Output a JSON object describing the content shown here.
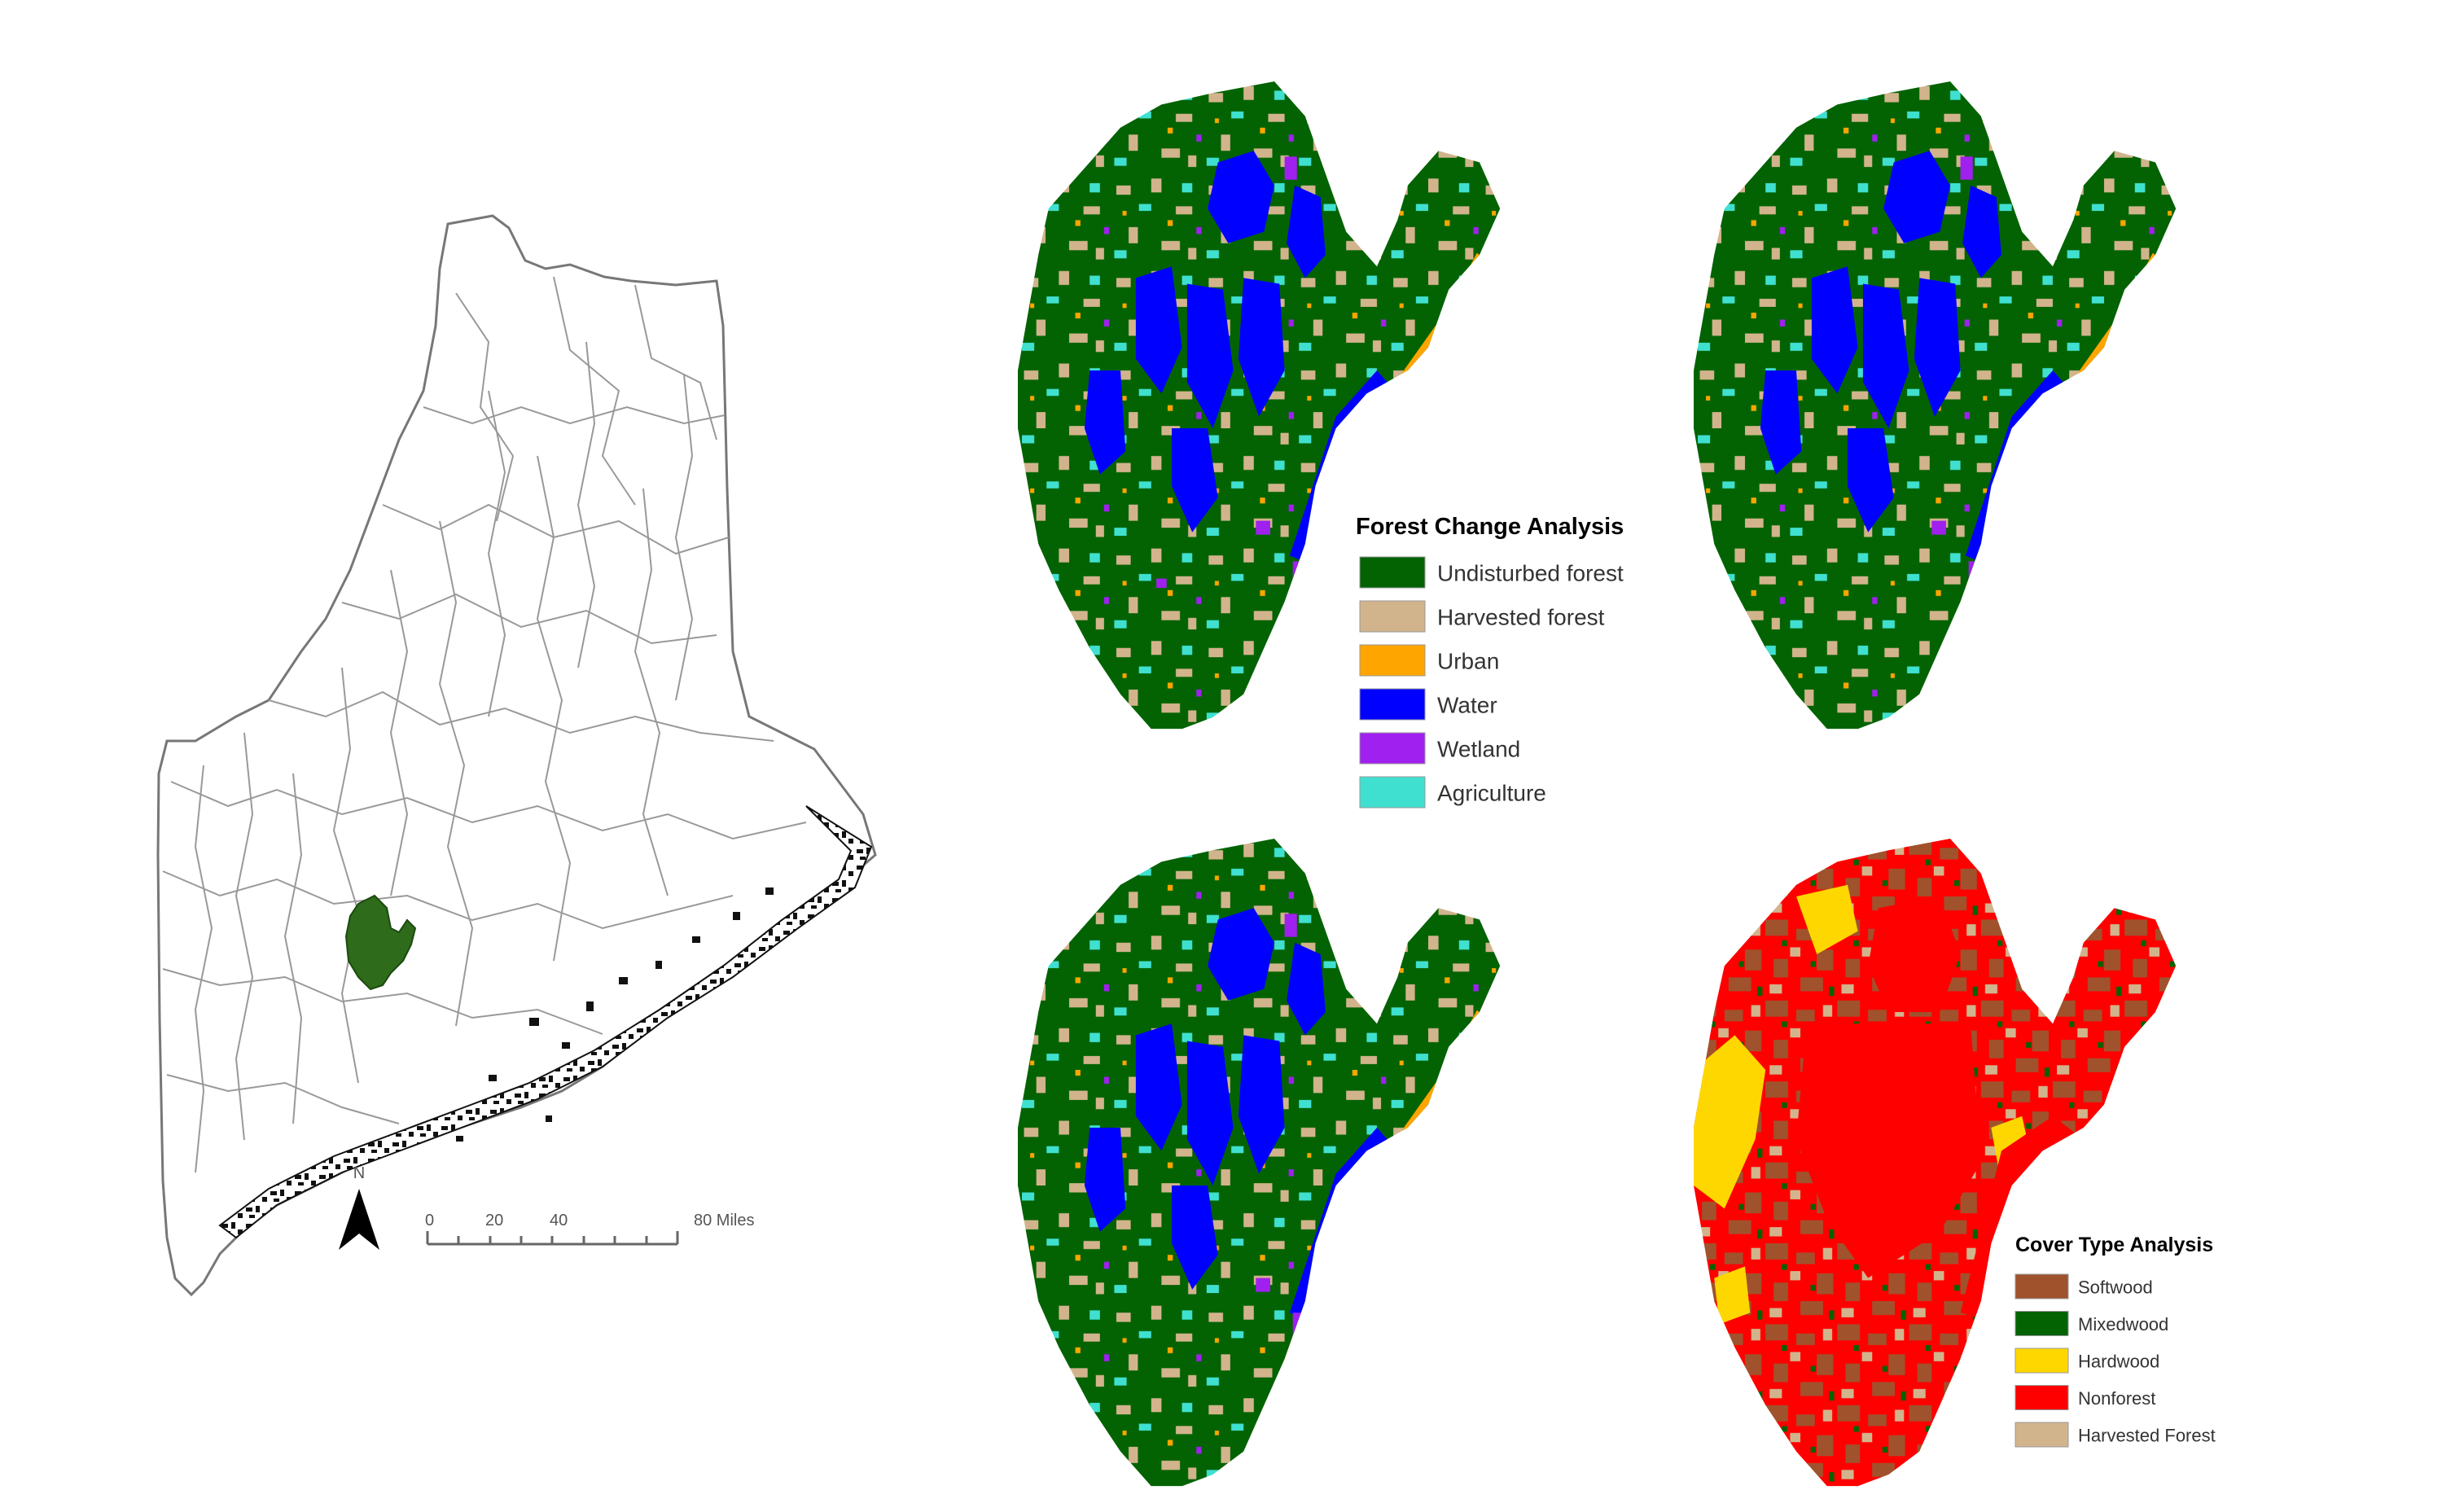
{
  "locator_map": {
    "north_label": "N",
    "scale_labels": [
      "0",
      "20",
      "40",
      "80 Miles"
    ]
  },
  "forest_change_legend": {
    "title": "Forest Change Analysis",
    "items": [
      {
        "label": "Undisturbed forest",
        "color": "#036303"
      },
      {
        "label": "Harvested forest",
        "color": "#d2b48c"
      },
      {
        "label": "Urban",
        "color": "#ffa500"
      },
      {
        "label": "Water",
        "color": "#0000ff"
      },
      {
        "label": "Wetland",
        "color": "#a020f0"
      },
      {
        "label": "Agriculture",
        "color": "#40e0d0"
      }
    ]
  },
  "cover_type_legend": {
    "title": "Cover Type Analysis",
    "items": [
      {
        "label": "Softwood",
        "color": "#a0522d"
      },
      {
        "label": "Mixedwood",
        "color": "#036303"
      },
      {
        "label": "Hardwood",
        "color": "#ffd700"
      },
      {
        "label": "Nonforest",
        "color": "#ff0000"
      },
      {
        "label": "Harvested Forest",
        "color": "#d2b48c"
      }
    ]
  },
  "colors": {
    "study_area": "#2e6b1a",
    "boundary": "#888888",
    "coast": "#111111"
  }
}
